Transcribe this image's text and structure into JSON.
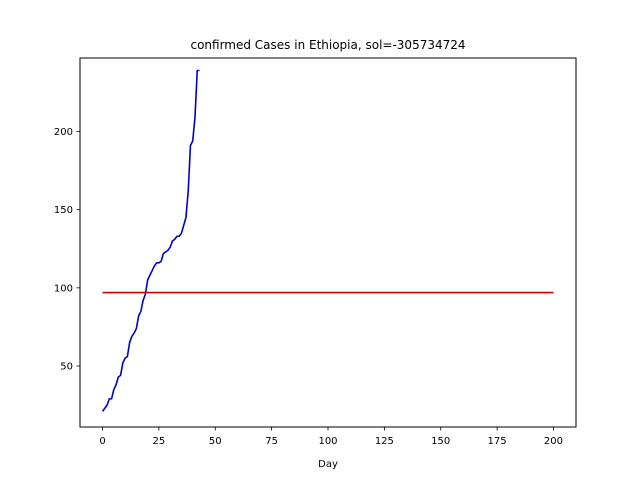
{
  "chart_data": {
    "type": "line",
    "title": "confirmed Cases in Ethiopia, sol=-305734724",
    "xlabel": "Day",
    "ylabel": "",
    "xlim": [
      -10,
      210
    ],
    "ylim": [
      11,
      247
    ],
    "xticks": [
      0,
      25,
      50,
      75,
      100,
      125,
      150,
      175,
      200
    ],
    "yticks": [
      50,
      100,
      150,
      200
    ],
    "grid": false,
    "series": [
      {
        "color": "#0000cc",
        "x": [
          0,
          1,
          2,
          3,
          4,
          5,
          6,
          7,
          8,
          9,
          10,
          11,
          12,
          13,
          14,
          15,
          16,
          17,
          18,
          19,
          20,
          21,
          22,
          23,
          24,
          25,
          26,
          27,
          28,
          29,
          30,
          31,
          32,
          33,
          34,
          35,
          36,
          37,
          38,
          39,
          40,
          41,
          42,
          43
        ],
        "y": [
          21,
          23,
          25,
          29,
          29,
          35,
          38,
          43,
          44,
          52,
          55,
          56,
          65,
          69,
          71,
          74,
          82,
          85,
          92,
          96,
          105,
          108,
          111,
          114,
          116,
          116,
          117,
          122,
          123,
          124,
          126,
          130,
          131,
          133,
          133,
          135,
          140,
          145,
          162,
          191,
          194,
          209,
          239,
          239
        ]
      },
      {
        "color": "#cc0000",
        "x": [
          0,
          200
        ],
        "y": [
          97,
          97
        ]
      }
    ]
  }
}
